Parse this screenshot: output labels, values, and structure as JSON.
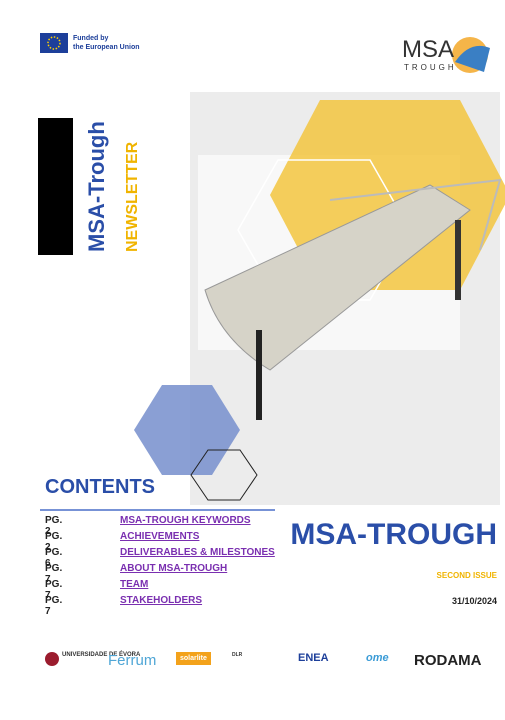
{
  "header": {
    "funding": [
      "Funded by",
      "the European Union"
    ],
    "logo_main": "MSA",
    "logo_sub": "TROUGH"
  },
  "side": {
    "title": "MSA-Trough",
    "subtitle": "NEWSLETTER"
  },
  "contents": {
    "heading": "CONTENTS",
    "items": [
      {
        "page": "PG. 2",
        "title": "MSA-TROUGH KEYWORDS"
      },
      {
        "page": "PG. 2",
        "title": "ACHIEVEMENTS"
      },
      {
        "page": "PG. 6",
        "title": "DELIVERABLES & MILESTONES"
      },
      {
        "page": "PG. 7",
        "title": "ABOUT MSA-TROUGH"
      },
      {
        "page": "PG. 7",
        "title": "TEAM"
      },
      {
        "page": "PG. 7",
        "title": "STAKEHOLDERS"
      }
    ]
  },
  "cover": {
    "title": "MSA-TROUGH",
    "issue": "SECOND ISSUE",
    "date": "31/10/2024"
  },
  "partners": [
    "UNIVERSIDADE DE ÉVORA",
    "Ferrum",
    "solarlite",
    "DLR",
    "ENEA",
    "ome",
    "RODAMA"
  ]
}
